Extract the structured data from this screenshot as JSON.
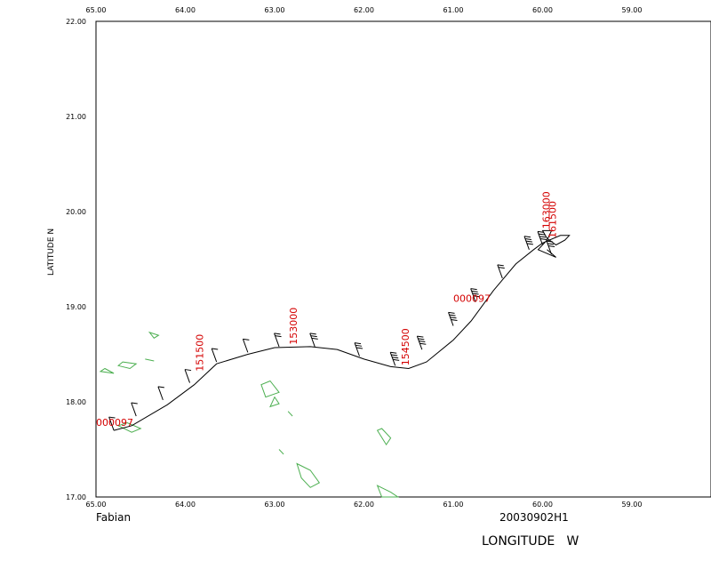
{
  "chart_data": {
    "type": "map",
    "xlabel": "LONGITUDE   W",
    "ylabel": "LATITUDE  N",
    "xlim": [
      65.0,
      58.0
    ],
    "ylim": [
      17.0,
      22.0
    ],
    "x_ticks": [
      "65.00",
      "64.00",
      "63.00",
      "62.00",
      "61.00",
      "60.00",
      "59.00"
    ],
    "y_ticks": [
      "17.00",
      "18.00",
      "19.00",
      "20.00",
      "21.00",
      "22.00"
    ],
    "storm_name": "Fabian",
    "flight_id": "20030902H1",
    "track": [
      [
        64.8,
        17.7
      ],
      [
        64.6,
        17.75
      ],
      [
        64.2,
        17.97
      ],
      [
        63.9,
        18.18
      ],
      [
        63.65,
        18.4
      ],
      [
        63.3,
        18.5
      ],
      [
        63.0,
        18.57
      ],
      [
        62.6,
        18.58
      ],
      [
        62.3,
        18.55
      ],
      [
        62.0,
        18.45
      ],
      [
        61.7,
        18.37
      ],
      [
        61.5,
        18.35
      ],
      [
        61.3,
        18.42
      ],
      [
        61.0,
        18.65
      ],
      [
        60.8,
        18.85
      ],
      [
        60.55,
        19.17
      ],
      [
        60.3,
        19.45
      ],
      [
        60.1,
        19.6
      ],
      [
        60.0,
        19.67
      ],
      [
        59.8,
        19.75
      ],
      [
        59.7,
        19.75
      ],
      [
        59.75,
        19.7
      ],
      [
        59.85,
        19.65
      ],
      [
        59.95,
        19.72
      ],
      [
        60.0,
        19.8
      ],
      [
        59.9,
        19.8
      ],
      [
        59.95,
        19.7
      ],
      [
        60.05,
        19.6
      ],
      [
        59.85,
        19.52
      ],
      [
        59.95,
        19.6
      ]
    ],
    "time_labels": [
      {
        "text": "000097",
        "lon": 65.0,
        "lat": 17.75,
        "rotation": 0
      },
      {
        "text": "151500",
        "lon": 63.8,
        "lat": 18.32,
        "rotation": -90
      },
      {
        "text": "153000",
        "lon": 62.75,
        "lat": 18.6,
        "rotation": -90
      },
      {
        "text": "154500",
        "lon": 61.5,
        "lat": 18.38,
        "rotation": -90
      },
      {
        "text": "000097",
        "lon": 61.0,
        "lat": 19.05,
        "rotation": 0
      },
      {
        "text": "161500",
        "lon": 59.85,
        "lat": 19.72,
        "rotation": -90
      },
      {
        "text": "163000",
        "lon": 59.92,
        "lat": 19.82,
        "rotation": -90
      }
    ],
    "wind_barbs": [
      {
        "lon": 64.8,
        "lat": 17.7,
        "barbs": 1
      },
      {
        "lon": 64.55,
        "lat": 17.85,
        "barbs": 1
      },
      {
        "lon": 64.25,
        "lat": 18.02,
        "barbs": 1
      },
      {
        "lon": 63.95,
        "lat": 18.2,
        "barbs": 1
      },
      {
        "lon": 63.65,
        "lat": 18.42,
        "barbs": 1
      },
      {
        "lon": 63.3,
        "lat": 18.52,
        "barbs": 1
      },
      {
        "lon": 62.95,
        "lat": 18.58,
        "barbs": 2
      },
      {
        "lon": 62.55,
        "lat": 18.58,
        "barbs": 3
      },
      {
        "lon": 62.05,
        "lat": 18.48,
        "barbs": 3
      },
      {
        "lon": 61.65,
        "lat": 18.38,
        "barbs": 4
      },
      {
        "lon": 61.35,
        "lat": 18.55,
        "barbs": 4
      },
      {
        "lon": 61.0,
        "lat": 18.8,
        "barbs": 4
      },
      {
        "lon": 60.75,
        "lat": 19.05,
        "barbs": 4
      },
      {
        "lon": 60.45,
        "lat": 19.3,
        "barbs": 2
      },
      {
        "lon": 60.15,
        "lat": 19.6,
        "barbs": 4
      },
      {
        "lon": 60.0,
        "lat": 19.65,
        "barbs": 4
      },
      {
        "lon": 59.9,
        "lat": 19.55,
        "barbs": 3
      }
    ],
    "islands": [
      [
        [
          64.9,
          18.35
        ],
        [
          64.8,
          18.3
        ],
        [
          64.95,
          18.32
        ]
      ],
      [
        [
          64.7,
          18.42
        ],
        [
          64.55,
          18.4
        ],
        [
          64.62,
          18.35
        ],
        [
          64.75,
          18.38
        ]
      ],
      [
        [
          64.45,
          18.45
        ],
        [
          64.35,
          18.43
        ]
      ],
      [
        [
          64.4,
          18.73
        ],
        [
          64.3,
          18.7
        ],
        [
          64.35,
          18.67
        ]
      ],
      [
        [
          64.75,
          17.75
        ],
        [
          64.6,
          17.68
        ],
        [
          64.5,
          17.72
        ],
        [
          64.65,
          17.78
        ]
      ],
      [
        [
          63.05,
          18.22
        ],
        [
          62.95,
          18.1
        ],
        [
          63.1,
          18.05
        ],
        [
          63.15,
          18.18
        ]
      ],
      [
        [
          63.0,
          18.05
        ],
        [
          62.95,
          17.98
        ],
        [
          63.05,
          17.95
        ]
      ],
      [
        [
          62.85,
          17.9
        ],
        [
          62.8,
          17.85
        ]
      ],
      [
        [
          62.75,
          17.35
        ],
        [
          62.6,
          17.28
        ],
        [
          62.5,
          17.15
        ],
        [
          62.6,
          17.1
        ],
        [
          62.7,
          17.2
        ]
      ],
      [
        [
          62.95,
          17.5
        ],
        [
          62.9,
          17.45
        ]
      ],
      [
        [
          61.85,
          17.7
        ],
        [
          61.75,
          17.55
        ],
        [
          61.7,
          17.62
        ],
        [
          61.8,
          17.72
        ]
      ],
      [
        [
          61.85,
          17.12
        ],
        [
          61.7,
          17.05
        ],
        [
          61.62,
          17.0
        ],
        [
          61.8,
          17.0
        ]
      ]
    ]
  }
}
